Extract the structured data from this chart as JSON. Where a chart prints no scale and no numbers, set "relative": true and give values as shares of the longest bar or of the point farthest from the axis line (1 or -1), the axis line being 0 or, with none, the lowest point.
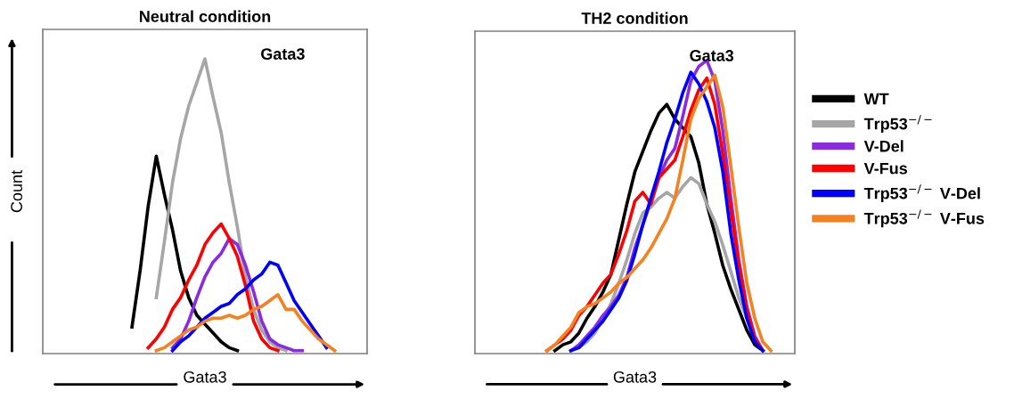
{
  "chart_data": [
    {
      "type": "line",
      "title": "Neutral condition",
      "xlabel": "Gata3",
      "ylabel": "Count",
      "annotations": [
        "Gata3"
      ],
      "relative": true,
      "legend": false,
      "categories": [
        null,
        null,
        null,
        null,
        null,
        null,
        null,
        null,
        null,
        null,
        null,
        null,
        null,
        null,
        null,
        null,
        null,
        null,
        null,
        null,
        null,
        null,
        null,
        null,
        null,
        null,
        null,
        null,
        null,
        null,
        null,
        null,
        null,
        null,
        null,
        null,
        null,
        null,
        null,
        null,
        null
      ],
      "series": [
        {
          "color": "#000000",
          "values": [
            null,
            null,
            null,
            null,
            null,
            null,
            null,
            null,
            null,
            null,
            null,
            0.09,
            0.28,
            0.5,
            0.67,
            0.54,
            0.42,
            0.28,
            0.19,
            0.13,
            0.1,
            0.07,
            0.04,
            0.02,
            0.01,
            null,
            null,
            null,
            null,
            null,
            null,
            null,
            null,
            null,
            null,
            null,
            null,
            null,
            null,
            null,
            null
          ]
        },
        {
          "color": "#a6a6a6",
          "values": [
            null,
            null,
            null,
            null,
            null,
            null,
            null,
            null,
            null,
            null,
            null,
            null,
            null,
            null,
            0.19,
            0.38,
            0.58,
            0.73,
            0.84,
            0.92,
            1,
            0.87,
            0.75,
            0.58,
            0.43,
            0.26,
            0.15,
            0.08,
            0.04,
            0.02,
            0.01,
            null,
            null,
            null,
            null,
            null,
            null,
            null,
            null,
            null,
            null
          ]
        },
        {
          "color": "#8a2be2",
          "values": [
            null,
            null,
            null,
            null,
            null,
            null,
            null,
            null,
            null,
            null,
            null,
            null,
            null,
            null,
            null,
            null,
            0.02,
            0.05,
            0.11,
            0.19,
            0.26,
            0.31,
            0.34,
            0.39,
            0.37,
            0.3,
            0.21,
            0.11,
            0.05,
            0.03,
            0.02,
            0.01,
            0.01,
            null,
            null,
            null,
            null,
            null,
            null,
            null,
            null
          ]
        },
        {
          "color": "#ff0000",
          "values": [
            null,
            null,
            null,
            null,
            null,
            null,
            null,
            null,
            null,
            null,
            null,
            null,
            null,
            0.02,
            0.05,
            0.09,
            0.15,
            0.19,
            0.25,
            0.3,
            0.37,
            0.41,
            0.44,
            0.39,
            0.33,
            0.23,
            0.11,
            0.05,
            0.02,
            0.01,
            null,
            null,
            null,
            null,
            null,
            null,
            null,
            null,
            null,
            null,
            null
          ]
        },
        {
          "color": "#0000ff",
          "values": [
            null,
            null,
            null,
            null,
            null,
            null,
            null,
            null,
            null,
            null,
            null,
            null,
            null,
            null,
            null,
            null,
            0.01,
            0.04,
            0.06,
            0.09,
            0.12,
            0.14,
            0.16,
            0.17,
            0.2,
            0.22,
            0.25,
            0.27,
            0.31,
            0.3,
            0.24,
            0.18,
            0.14,
            0.1,
            0.06,
            0.02,
            null,
            null,
            null,
            null,
            null
          ]
        },
        {
          "color": "#f58220",
          "values": [
            null,
            null,
            null,
            null,
            null,
            null,
            null,
            null,
            null,
            null,
            null,
            null,
            null,
            null,
            0.01,
            0.02,
            0.04,
            0.06,
            0.08,
            0.09,
            0.11,
            0.12,
            0.12,
            0.13,
            0.12,
            0.13,
            0.15,
            0.16,
            0.18,
            0.2,
            0.15,
            0.15,
            0.11,
            0.08,
            0.05,
            0.03,
            0.01,
            null,
            null,
            null,
            null
          ]
        }
      ]
    },
    {
      "type": "line",
      "title": "TH2 condition",
      "xlabel": "Gata3",
      "annotations": [
        "Gata3"
      ],
      "relative": true,
      "legend": "right",
      "categories": [
        null,
        null,
        null,
        null,
        null,
        null,
        null,
        null,
        null,
        null,
        null,
        null,
        null,
        null,
        null,
        null,
        null,
        null,
        null,
        null,
        null,
        null,
        null,
        null,
        null,
        null,
        null,
        null,
        null,
        null,
        null,
        null,
        null,
        null,
        null,
        null,
        null,
        null,
        null,
        null,
        null
      ],
      "series": [
        {
          "name": "WT",
          "color": "#000000",
          "values": [
            null,
            null,
            null,
            null,
            null,
            null,
            null,
            null,
            null,
            null,
            0.01,
            0.03,
            0.04,
            0.07,
            0.12,
            0.16,
            0.21,
            0.27,
            0.39,
            0.51,
            0.62,
            0.69,
            0.76,
            0.82,
            0.85,
            0.8,
            0.77,
            0.74,
            0.65,
            0.51,
            0.41,
            0.3,
            0.22,
            0.15,
            0.08,
            0.03,
            0.01,
            null,
            null,
            null,
            null
          ]
        },
        {
          "name": "Trp53$^{−/−}$",
          "color": "#a6a6a6",
          "values": [
            null,
            null,
            null,
            null,
            null,
            null,
            null,
            null,
            null,
            null,
            null,
            null,
            0.01,
            0.02,
            0.04,
            0.07,
            0.12,
            0.17,
            0.24,
            0.32,
            0.41,
            0.48,
            0.5,
            0.53,
            0.55,
            0.53,
            0.57,
            0.6,
            0.58,
            0.51,
            0.45,
            0.37,
            0.28,
            0.19,
            0.12,
            0.05,
            0.01,
            null,
            null,
            null,
            null
          ]
        },
        {
          "name": "V-Del",
          "color": "#8a2be2",
          "values": [
            null,
            null,
            null,
            null,
            null,
            null,
            null,
            null,
            null,
            null,
            null,
            null,
            0.01,
            0.03,
            0.06,
            0.09,
            0.13,
            0.16,
            0.2,
            0.26,
            0.36,
            0.44,
            0.52,
            0.6,
            0.66,
            0.7,
            0.81,
            0.93,
            0.98,
            1,
            0.93,
            0.76,
            0.53,
            0.32,
            0.16,
            0.06,
            0.01,
            null,
            null,
            null,
            null
          ]
        },
        {
          "name": "V-Fus",
          "color": "#ff0000",
          "values": [
            null,
            null,
            null,
            null,
            null,
            null,
            null,
            null,
            null,
            0.01,
            0.03,
            0.05,
            0.08,
            0.13,
            0.16,
            0.2,
            0.24,
            0.27,
            0.34,
            0.42,
            0.52,
            0.55,
            0.51,
            0.6,
            0.63,
            0.66,
            0.74,
            0.83,
            0.9,
            0.94,
            0.85,
            0.68,
            0.49,
            0.3,
            0.15,
            0.05,
            0.01,
            null,
            null,
            null,
            null
          ]
        },
        {
          "name": "Trp53$^{−/−}$ V-Del",
          "color": "#0000ff",
          "values": [
            null,
            null,
            null,
            null,
            null,
            null,
            null,
            null,
            null,
            null,
            null,
            null,
            0.01,
            0.02,
            0.05,
            0.08,
            0.11,
            0.15,
            0.19,
            0.25,
            0.34,
            0.44,
            0.53,
            0.62,
            0.72,
            0.8,
            0.89,
            0.96,
            0.92,
            0.86,
            0.77,
            0.62,
            0.41,
            0.25,
            0.12,
            0.04,
            0.01,
            null,
            null,
            null,
            null
          ]
        },
        {
          "name": "Trp53$^{−/−}$ V-Fus",
          "color": "#f58220",
          "values": [
            null,
            null,
            null,
            null,
            null,
            null,
            null,
            null,
            null,
            0.01,
            0.03,
            0.06,
            0.09,
            0.14,
            0.16,
            0.17,
            0.19,
            0.21,
            0.24,
            0.26,
            0.29,
            0.32,
            0.36,
            0.41,
            0.46,
            0.53,
            0.66,
            0.8,
            0.87,
            0.91,
            0.95,
            0.84,
            0.64,
            0.43,
            0.24,
            0.12,
            0.04,
            0.01,
            null,
            null,
            null
          ]
        }
      ]
    }
  ]
}
